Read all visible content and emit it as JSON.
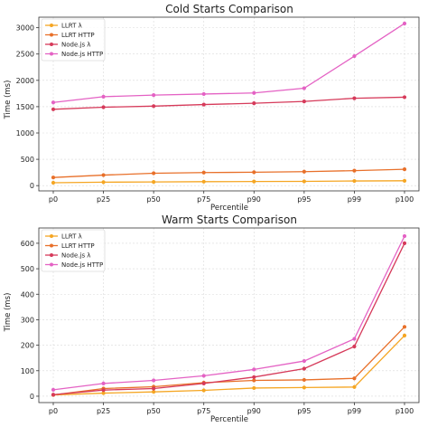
{
  "chart_data": [
    {
      "type": "line",
      "title": "Cold Starts Comparison",
      "xlabel": "Percentile",
      "ylabel": "Time (ms)",
      "categories": [
        "p0",
        "p25",
        "p50",
        "p75",
        "p90",
        "p95",
        "p99",
        "p100"
      ],
      "ylim": [
        -100,
        3200
      ],
      "yticks": [
        0,
        500,
        1000,
        1500,
        2000,
        2500,
        3000
      ],
      "grid": true,
      "legend": "top-left",
      "series": [
        {
          "name": "LLRT λ",
          "color": "#f5a623",
          "values": [
            55,
            65,
            70,
            75,
            78,
            80,
            88,
            92
          ]
        },
        {
          "name": "LLRT HTTP",
          "color": "#e8702a",
          "values": [
            155,
            200,
            235,
            248,
            255,
            265,
            285,
            310
          ]
        },
        {
          "name": "Node.js λ",
          "color": "#d63a5a",
          "values": [
            1450,
            1490,
            1510,
            1540,
            1565,
            1600,
            1660,
            1680
          ]
        },
        {
          "name": "Node.js HTTP",
          "color": "#e462c4",
          "values": [
            1580,
            1690,
            1720,
            1740,
            1760,
            1850,
            2460,
            3080
          ]
        }
      ]
    },
    {
      "type": "line",
      "title": "Warm Starts Comparison",
      "xlabel": "Percentile",
      "ylabel": "Time (ms)",
      "categories": [
        "p0",
        "p25",
        "p50",
        "p75",
        "p90",
        "p95",
        "p99",
        "p100"
      ],
      "ylim": [
        -25,
        660
      ],
      "yticks": [
        0,
        100,
        200,
        300,
        400,
        500,
        600
      ],
      "grid": true,
      "legend": "top-left",
      "series": [
        {
          "name": "LLRT λ",
          "color": "#f5a623",
          "values": [
            5,
            12,
            17,
            23,
            32,
            34,
            36,
            238
          ]
        },
        {
          "name": "LLRT HTTP",
          "color": "#e8702a",
          "values": [
            5,
            30,
            37,
            53,
            62,
            64,
            70,
            272
          ]
        },
        {
          "name": "Node.js λ",
          "color": "#d63a5a",
          "values": [
            6,
            24,
            30,
            50,
            75,
            108,
            195,
            600
          ]
        },
        {
          "name": "Node.js HTTP",
          "color": "#e462c4",
          "values": [
            25,
            50,
            62,
            80,
            105,
            138,
            225,
            628
          ]
        }
      ]
    }
  ]
}
